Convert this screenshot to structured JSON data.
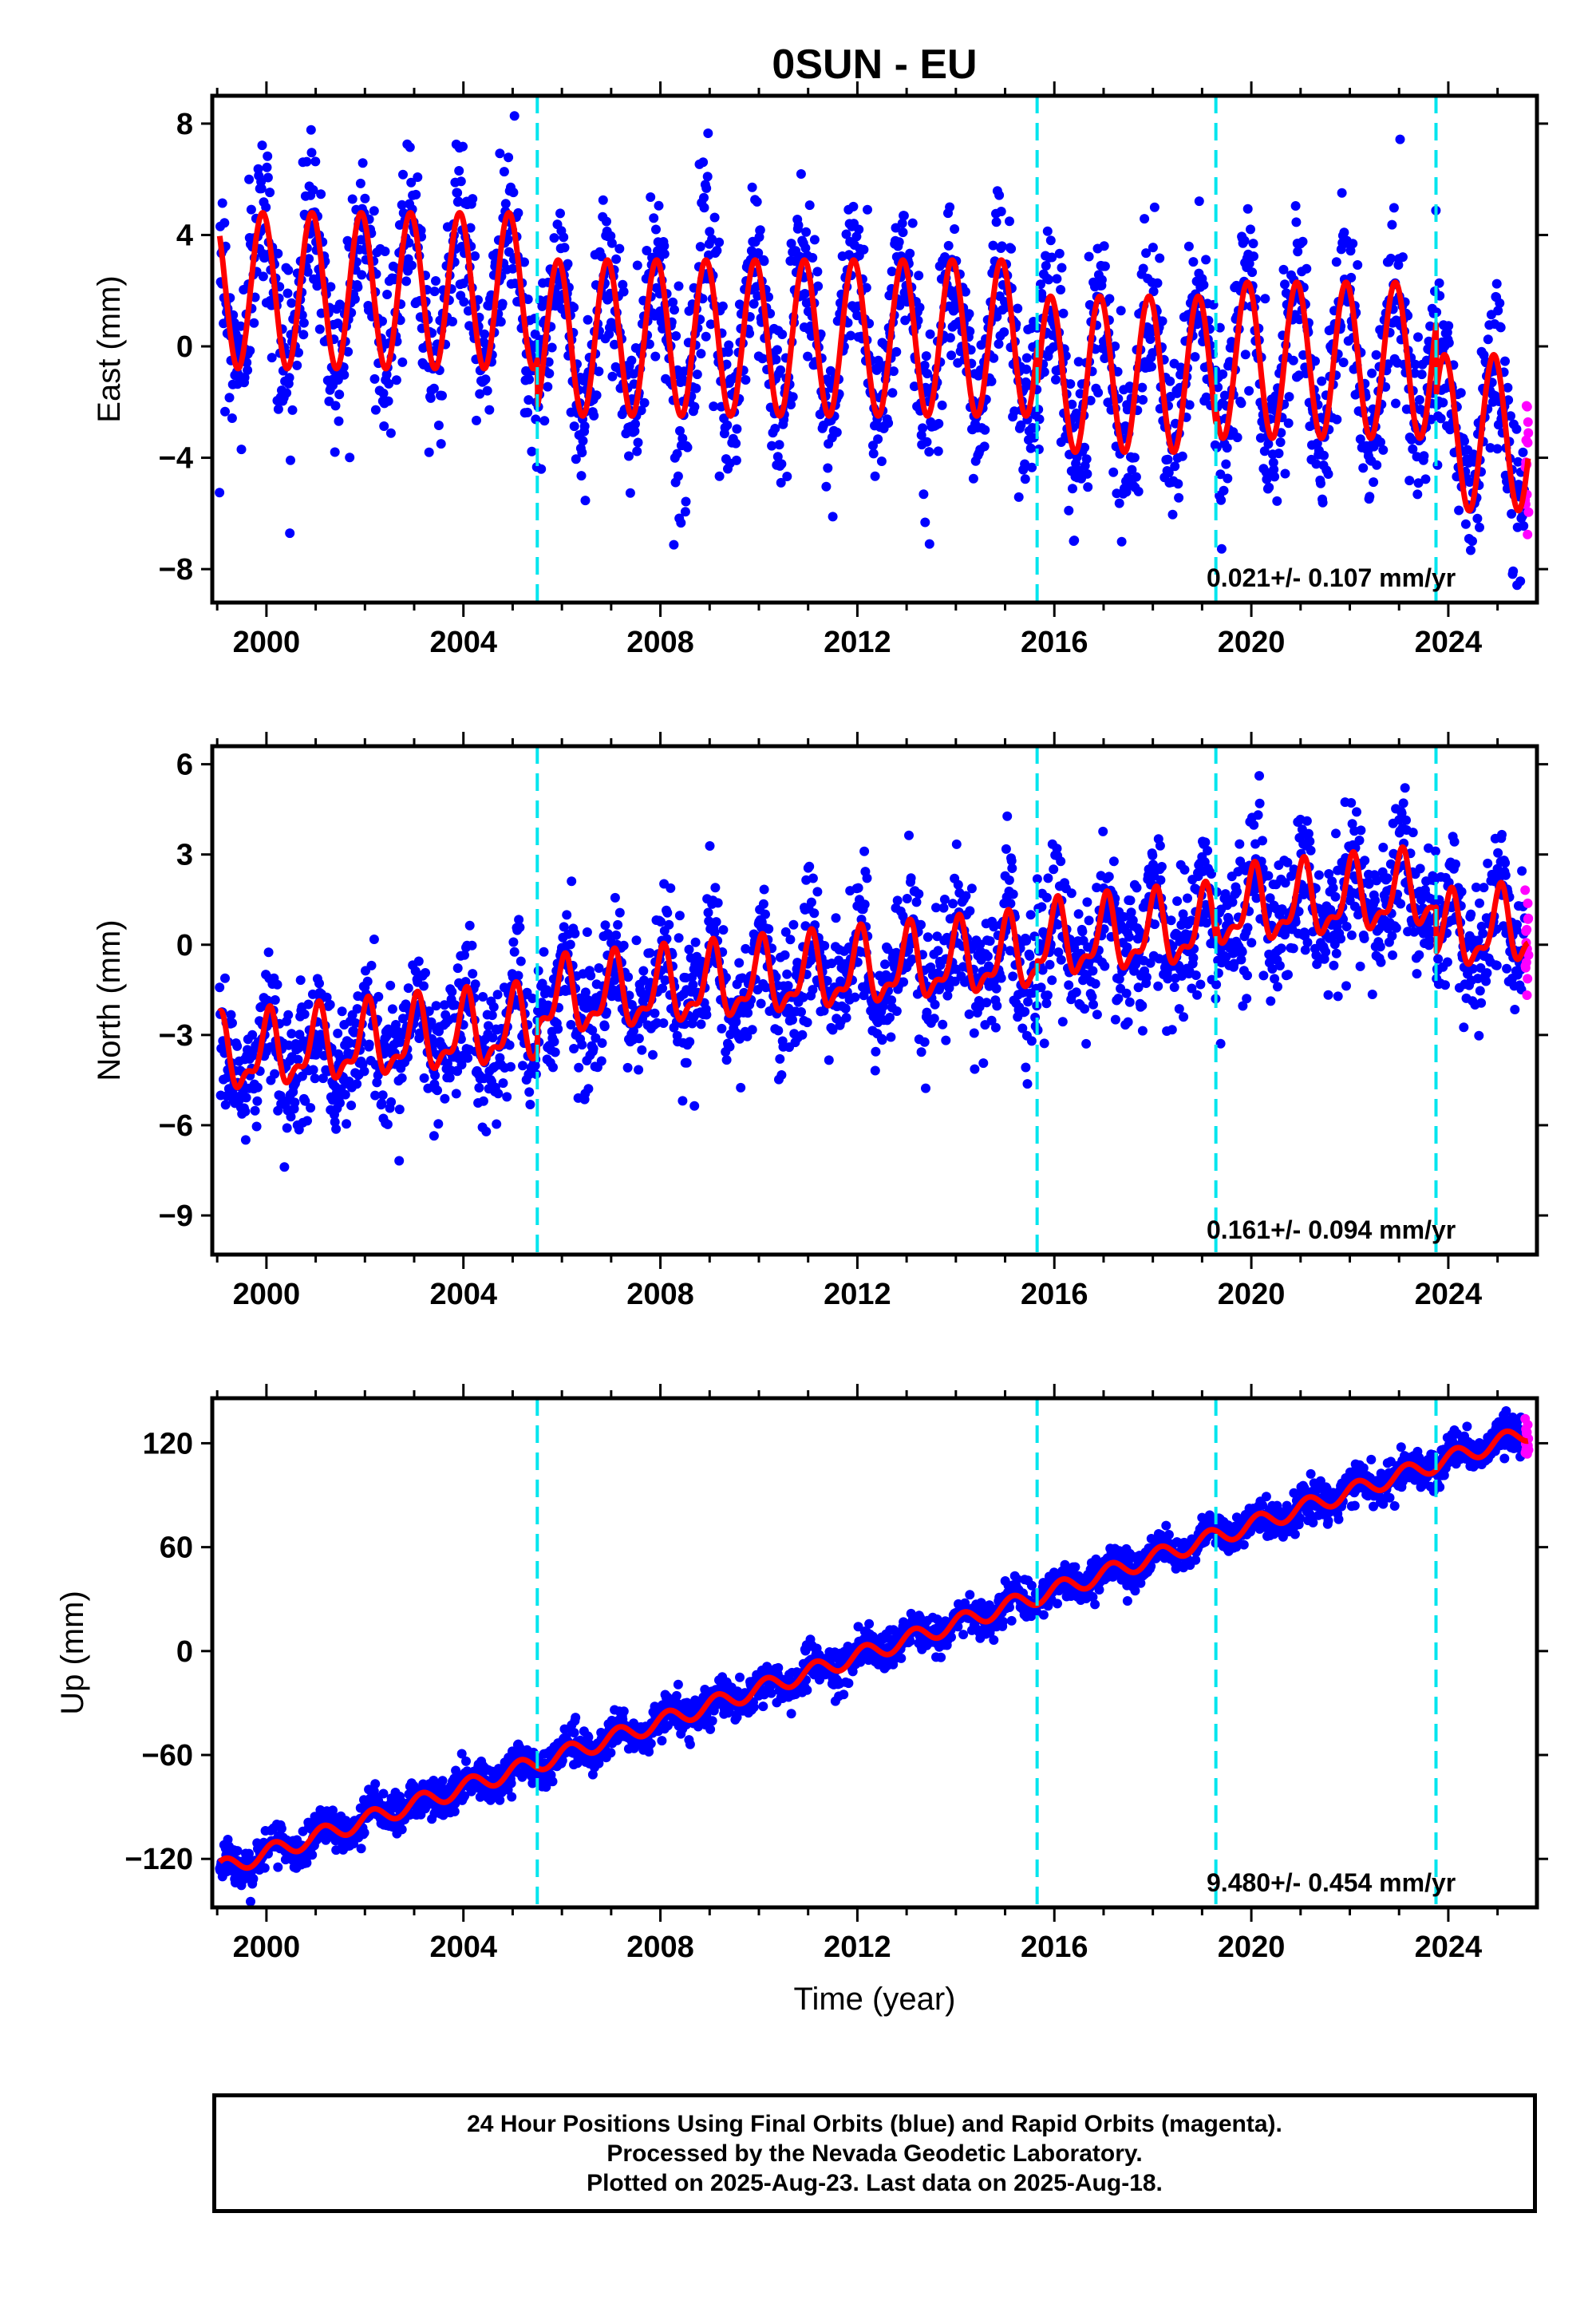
{
  "figure": {
    "title": "0SUN - EU",
    "xlabel": "Time (year)",
    "caption": [
      "24 Hour Positions Using Final Orbits (blue) and Rapid Orbits (magenta).",
      "Processed by the Nevada Geodetic Laboratory.",
      "Plotted on 2025-Aug-23. Last data on 2025-Aug-18."
    ]
  },
  "colors": {
    "final_orbits": "#0000ff",
    "rapid_orbits": "#ff00ff",
    "model_fit": "#ff0000",
    "equipment_change": "#00e5ee"
  },
  "chart_data": [
    {
      "type": "scatter",
      "panel": "east",
      "ylabel": "East (mm)",
      "xlim": [
        1998.9,
        2025.8
      ],
      "ylim": [
        -9.2,
        9.0
      ],
      "yticks": [
        8,
        4,
        0,
        -4,
        -8
      ],
      "ytick_labels": [
        "8",
        "4",
        "0",
        "−4",
        "−8"
      ],
      "xticks": [
        2000,
        2004,
        2008,
        2012,
        2016,
        2020,
        2024
      ],
      "xtick_labels": [
        "2000",
        "2004",
        "2008",
        "2012",
        "2016",
        "2020",
        "2024"
      ],
      "equipment_changes": [
        2005.5,
        2015.65,
        2019.28,
        2023.75
      ],
      "rate_label": "0.021+/- 0.107 mm/yr",
      "model": {
        "segments": [
          {
            "start": 1999.05,
            "end": 2005.5,
            "offset": 2.0,
            "trend": 0.0
          },
          {
            "start": 2005.5,
            "end": 2015.65,
            "offset": 0.3,
            "trend": 0.0
          },
          {
            "start": 2015.65,
            "end": 2019.28,
            "offset": -1.0,
            "trend": 0.0
          },
          {
            "start": 2019.28,
            "end": 2023.75,
            "offset": -0.5,
            "trend": 0.0
          },
          {
            "start": 2023.75,
            "end": 2025.62,
            "offset": -3.1,
            "trend": 0.0
          }
        ],
        "annual_amp": 2.8,
        "annual_phase": 2.05,
        "semiannual_amp": 0.0,
        "noise_sd": 1.5
      },
      "series": [
        {
          "name": "Final Orbits (blue)",
          "x_start": 1999.05,
          "x_end": 2025.55,
          "points": 2400
        },
        {
          "name": "Rapid Orbits (magenta)",
          "x_start": 2025.56,
          "x_end": 2025.63,
          "points": 14
        }
      ]
    },
    {
      "type": "scatter",
      "panel": "north",
      "ylabel": "North (mm)",
      "xlim": [
        1998.9,
        2025.8
      ],
      "ylim": [
        -10.3,
        6.6
      ],
      "yticks": [
        6,
        3,
        0,
        -3,
        -6,
        -9
      ],
      "ytick_labels": [
        "6",
        "3",
        "0",
        "−3",
        "−6",
        "−9"
      ],
      "xticks": [
        2000,
        2004,
        2008,
        2012,
        2016,
        2020,
        2024
      ],
      "xtick_labels": [
        "2000",
        "2004",
        "2008",
        "2012",
        "2016",
        "2020",
        "2024"
      ],
      "equipment_changes": [
        2005.5,
        2015.65,
        2019.28,
        2023.75
      ],
      "rate_label": "0.161+/- 0.094 mm/yr",
      "model": {
        "segments": [
          {
            "start": 1999.05,
            "end": 2005.5,
            "offset": -1.7,
            "trend": 0.16
          },
          {
            "start": 2005.5,
            "end": 2015.65,
            "offset": -0.9,
            "trend": 0.16
          },
          {
            "start": 2015.65,
            "end": 2019.28,
            "offset": -0.6,
            "trend": 0.16
          },
          {
            "start": 2019.28,
            "end": 2023.75,
            "offset": -0.1,
            "trend": 0.16
          },
          {
            "start": 2023.75,
            "end": 2025.62,
            "offset": -1.6,
            "trend": 0.16
          }
        ],
        "annual_amp": 1.1,
        "annual_phase": 1.3,
        "semiannual_amp": 0.5,
        "noise_sd": 1.1
      },
      "series": [
        {
          "name": "Final Orbits (blue)",
          "x_start": 1999.05,
          "x_end": 2025.55,
          "points": 2400
        },
        {
          "name": "Rapid Orbits (magenta)",
          "x_start": 2025.56,
          "x_end": 2025.63,
          "points": 14
        }
      ]
    },
    {
      "type": "scatter",
      "panel": "up",
      "ylabel": "Up (mm)",
      "xlim": [
        1998.9,
        2025.8
      ],
      "ylim": [
        -148,
        146
      ],
      "yticks": [
        120,
        60,
        0,
        -60,
        -120
      ],
      "ytick_labels": [
        "120",
        "60",
        "0",
        "−60",
        "−120"
      ],
      "xticks": [
        2000,
        2004,
        2008,
        2012,
        2016,
        2020,
        2024
      ],
      "xtick_labels": [
        "2000",
        "2004",
        "2008",
        "2012",
        "2016",
        "2020",
        "2024"
      ],
      "equipment_changes": [
        2005.5,
        2015.65,
        2019.28,
        2023.75
      ],
      "rate_label": "9.480+/- 0.454 mm/yr",
      "model": {
        "segments": [
          {
            "start": 1999.05,
            "end": 2025.62,
            "offset": -3.0,
            "trend": 9.48
          }
        ],
        "annual_amp": 5.0,
        "annual_phase": 0.6,
        "semiannual_amp": 0.0,
        "noise_sd": 5.5
      },
      "series": [
        {
          "name": "Final Orbits (blue)",
          "x_start": 1999.05,
          "x_end": 2025.55,
          "points": 2400
        },
        {
          "name": "Rapid Orbits (magenta)",
          "x_start": 2025.56,
          "x_end": 2025.63,
          "points": 14
        }
      ]
    }
  ]
}
